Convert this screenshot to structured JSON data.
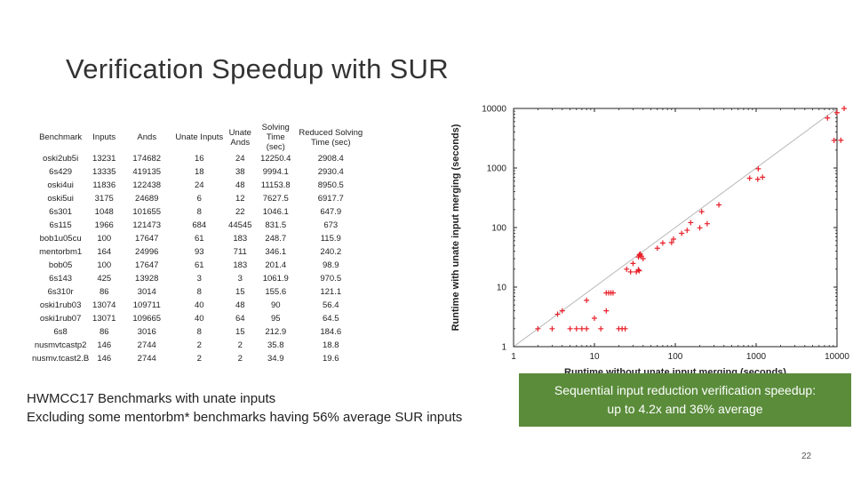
{
  "slide": {
    "title": "Verification Speedup with SUR",
    "page_number": "22"
  },
  "table": {
    "headers": [
      [
        "Benchmark"
      ],
      [
        "Inputs"
      ],
      [
        "Ands"
      ],
      [
        "Unate Inputs"
      ],
      [
        "Unate",
        "Ands"
      ],
      [
        "Solving",
        "Time (sec)"
      ],
      [
        "Reduced Solving",
        "Time (sec)"
      ]
    ],
    "rows": [
      [
        "oski2ub5i",
        "13231",
        "174682",
        "16",
        "24",
        "12250.4",
        "2908.4"
      ],
      [
        "6s429",
        "13335",
        "419135",
        "18",
        "38",
        "9994.1",
        "2930.4"
      ],
      [
        "oski4ui",
        "11836",
        "122438",
        "24",
        "48",
        "11153.8",
        "8950.5"
      ],
      [
        "oski5ui",
        "3175",
        "24689",
        "6",
        "12",
        "7627.5",
        "6917.7"
      ],
      [
        "6s301",
        "1048",
        "101655",
        "8",
        "22",
        "1046.1",
        "647.9"
      ],
      [
        "6s115",
        "1966",
        "121473",
        "684",
        "44545",
        "831.5",
        "673"
      ],
      [
        "bob1u05cu",
        "100",
        "17647",
        "61",
        "183",
        "248.7",
        "115.9"
      ],
      [
        "mentorbm1",
        "164",
        "24996",
        "93",
        "711",
        "346.1",
        "240.2"
      ],
      [
        "bob05",
        "100",
        "17647",
        "61",
        "183",
        "201.4",
        "98.9"
      ],
      [
        "6s143",
        "425",
        "13928",
        "3",
        "3",
        "1061.9",
        "970.5"
      ],
      [
        "6s310r",
        "86",
        "3014",
        "8",
        "15",
        "155.6",
        "121.1"
      ],
      [
        "oski1rub03",
        "13074",
        "109711",
        "40",
        "48",
        "90",
        "56.4"
      ],
      [
        "oski1rub07",
        "13071",
        "109665",
        "40",
        "64",
        "95",
        "64.5"
      ],
      [
        "6s8",
        "86",
        "3016",
        "8",
        "15",
        "212.9",
        "184.6"
      ],
      [
        "nusmvtcastp2",
        "146",
        "2744",
        "2",
        "2",
        "35.8",
        "18.8"
      ],
      [
        "nusmv.tcast2.B",
        "146",
        "2744",
        "2",
        "2",
        "34.9",
        "19.6"
      ]
    ]
  },
  "chart_data": {
    "type": "scatter",
    "xlabel": "Runtime without unate input merging (seconds)",
    "ylabel": "Runtime with unate input merging (seconds)",
    "xscale": "log",
    "yscale": "log",
    "xlim": [
      1,
      10000
    ],
    "ylim": [
      1,
      10000
    ],
    "xticks": [
      "1",
      "10",
      "100",
      "1000",
      "10000"
    ],
    "yticks": [
      "1",
      "10",
      "100",
      "1000",
      "10000"
    ],
    "diagonal": true,
    "marker_color": "#e8202a",
    "points": [
      [
        12250,
        10000
      ],
      [
        9994,
        8500
      ],
      [
        11153,
        2930
      ],
      [
        9200,
        2908
      ],
      [
        7627,
        6918
      ],
      [
        1200,
        700
      ],
      [
        1046,
        648
      ],
      [
        831,
        673
      ],
      [
        1061,
        970
      ],
      [
        346,
        240
      ],
      [
        248,
        116
      ],
      [
        201,
        99
      ],
      [
        155,
        121
      ],
      [
        212,
        185
      ],
      [
        95,
        64
      ],
      [
        90,
        56
      ],
      [
        120,
        80
      ],
      [
        140,
        90
      ],
      [
        60,
        45
      ],
      [
        70,
        55
      ],
      [
        40,
        30
      ],
      [
        38,
        33
      ],
      [
        36,
        35
      ],
      [
        36.5,
        34
      ],
      [
        35,
        32
      ],
      [
        37,
        36
      ],
      [
        34.9,
        19.6
      ],
      [
        35.8,
        18.8
      ],
      [
        33,
        18
      ],
      [
        28,
        18
      ],
      [
        30,
        25
      ],
      [
        25,
        20
      ],
      [
        14,
        8
      ],
      [
        15,
        8
      ],
      [
        16,
        8
      ],
      [
        17,
        8
      ],
      [
        14,
        4
      ],
      [
        8,
        6
      ],
      [
        10,
        3
      ],
      [
        4,
        4
      ],
      [
        3,
        2
      ],
      [
        5,
        2
      ],
      [
        6,
        2
      ],
      [
        7,
        2
      ],
      [
        8,
        2
      ],
      [
        12,
        2
      ],
      [
        20,
        2
      ],
      [
        22,
        2
      ],
      [
        24,
        2
      ],
      [
        3.5,
        3.5
      ],
      [
        2,
        2
      ]
    ]
  },
  "caption": {
    "line1": "HWMCC17 Benchmarks with unate inputs",
    "line2": "Excluding some mentorbm* benchmarks having 56% average SUR inputs"
  },
  "highlight": {
    "line1": "Sequential input reduction verification speedup:",
    "line2": "up to 4.2x and 36% average"
  }
}
